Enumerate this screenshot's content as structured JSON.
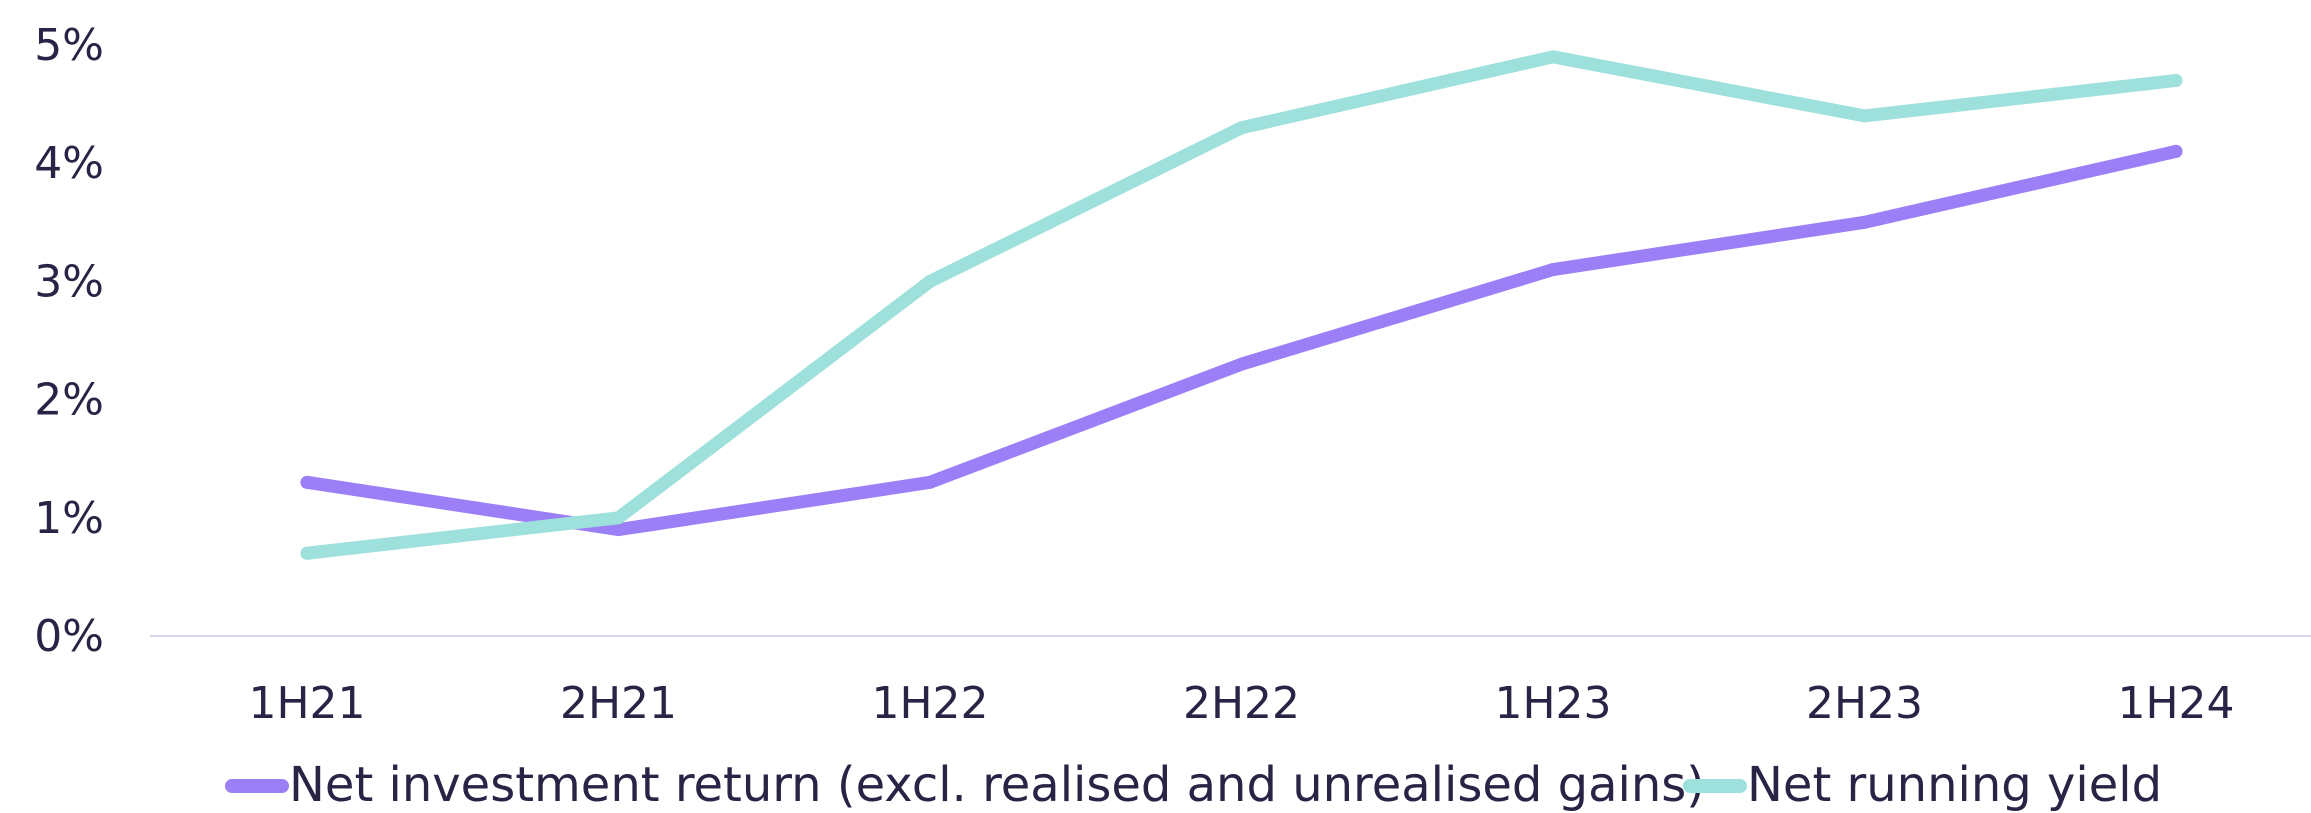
{
  "chart_data": {
    "type": "line",
    "categories": [
      "1H21",
      "2H21",
      "1H22",
      "2H22",
      "1H23",
      "2H23",
      "1H24"
    ],
    "y_ticks": [
      "0%",
      "1%",
      "2%",
      "3%",
      "4%",
      "5%"
    ],
    "ylim": [
      0,
      5
    ],
    "grid": false,
    "legend_position": "bottom",
    "series": [
      {
        "name": "Net investment return (excl. realised and unrealised gains)",
        "color": "#9b7ff6",
        "values": [
          1.3,
          0.9,
          1.3,
          2.3,
          3.1,
          3.5,
          4.1
        ]
      },
      {
        "name": "Net running yield",
        "color": "#9ee0dc",
        "values": [
          0.7,
          1.0,
          3.0,
          4.3,
          4.9,
          4.4,
          4.7
        ]
      }
    ],
    "axis_color": "#d6d6ef"
  }
}
